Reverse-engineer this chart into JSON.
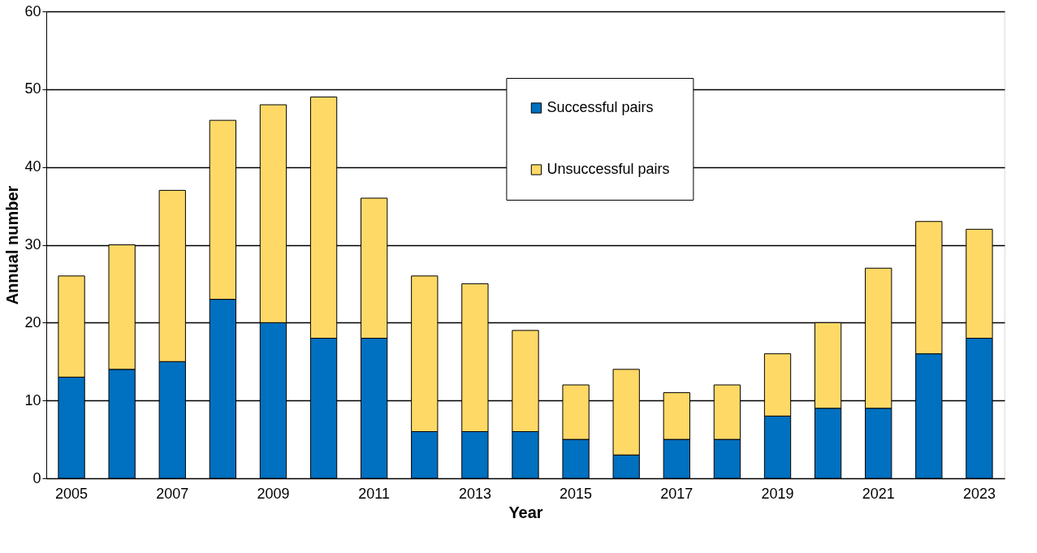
{
  "chart_data": {
    "type": "bar",
    "stacked": true,
    "xlabel": "Year",
    "ylabel": "Annual number",
    "categories": [
      "2005",
      null,
      "2007",
      null,
      "2009",
      null,
      "2011",
      null,
      "2013",
      null,
      "2015",
      null,
      "2017",
      null,
      "2019",
      null,
      "2021",
      null,
      "2023"
    ],
    "series": [
      {
        "name": "Successful pairs",
        "color": "#0070c0",
        "values": [
          13,
          14,
          15,
          23,
          20,
          18,
          18,
          6,
          6,
          6,
          5,
          3,
          5,
          5,
          8,
          9,
          9,
          16,
          18
        ]
      },
      {
        "name": "Unsuccessful pairs",
        "color": "#ffd966",
        "values": [
          13,
          16,
          22,
          23,
          28,
          31,
          18,
          20,
          19,
          13,
          7,
          11,
          6,
          7,
          8,
          11,
          18,
          17,
          14
        ]
      }
    ],
    "ylim": [
      0,
      60
    ],
    "yticks": [
      0,
      10,
      20,
      30,
      40,
      50,
      60
    ],
    "grid": "y",
    "legend": "top"
  }
}
